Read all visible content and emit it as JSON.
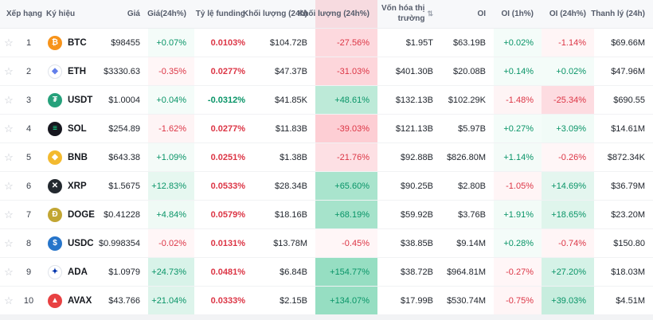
{
  "colors": {
    "up_bg": "46,189,133",
    "down_bg": "246,70,93",
    "up_text": "#089467",
    "down_text": "#dc3545",
    "header_bg": "#f7f8fa"
  },
  "header": {
    "sort_icon": "⇅",
    "cols": [
      {
        "label": "Xếp hạng"
      },
      {
        "label": "Ký hiệu"
      },
      {
        "label": "Giá"
      },
      {
        "label": "Giá(24h%)"
      },
      {
        "label": "Tỷ lệ funding"
      },
      {
        "label": "Khối lượng (24h)"
      },
      {
        "label": "Khối lượng (24h%)"
      },
      {
        "label": "Vốn hóa thị trường"
      },
      {
        "label": "OI"
      },
      {
        "label": "OI (1h%)"
      },
      {
        "label": "OI (24h%)"
      },
      {
        "label": "Thanh lý (24h)"
      }
    ]
  },
  "rows": [
    {
      "rank": "1",
      "symbol": "BTC",
      "icon": {
        "bg": "#f7931a",
        "fg": "#ffffff",
        "glyph": "₿"
      },
      "price": "$98455",
      "change24h": "+0.07%",
      "funding": "0.0103%",
      "volume24h": "$104.72B",
      "volumeChange24h": "-27.56%",
      "marketCap": "$1.95T",
      "oi": "$63.19B",
      "oiChange1h": "+0.02%",
      "oiChange24h": "-1.14%",
      "liquidation24h": "$69.66M"
    },
    {
      "rank": "2",
      "symbol": "ETH",
      "icon": {
        "bg": "#ffffff",
        "fg": "#627eea",
        "glyph": "◆",
        "border": "#dfe3ea"
      },
      "price": "$3330.63",
      "change24h": "-0.35%",
      "funding": "0.0277%",
      "volume24h": "$47.37B",
      "volumeChange24h": "-31.03%",
      "marketCap": "$401.30B",
      "oi": "$20.08B",
      "oiChange1h": "+0.14%",
      "oiChange24h": "+0.02%",
      "liquidation24h": "$47.96M"
    },
    {
      "rank": "3",
      "symbol": "USDT",
      "icon": {
        "bg": "#26a17b",
        "fg": "#ffffff",
        "glyph": "₮"
      },
      "price": "$1.0004",
      "change24h": "+0.04%",
      "funding": "-0.0312%",
      "volume24h": "$41.85K",
      "volumeChange24h": "+48.61%",
      "marketCap": "$132.13B",
      "oi": "$102.29K",
      "oiChange1h": "-1.48%",
      "oiChange24h": "-25.34%",
      "liquidation24h": "$690.55"
    },
    {
      "rank": "4",
      "symbol": "SOL",
      "icon": {
        "bg": "#17171f",
        "fg": "#14f195",
        "glyph": "≡"
      },
      "price": "$254.89",
      "change24h": "-1.62%",
      "funding": "0.0277%",
      "volume24h": "$11.83B",
      "volumeChange24h": "-39.03%",
      "marketCap": "$121.13B",
      "oi": "$5.97B",
      "oiChange1h": "+0.27%",
      "oiChange24h": "+3.09%",
      "liquidation24h": "$14.61M"
    },
    {
      "rank": "5",
      "symbol": "BNB",
      "icon": {
        "bg": "#f3ba2f",
        "fg": "#ffffff",
        "glyph": "◆"
      },
      "price": "$643.38",
      "change24h": "+1.09%",
      "funding": "0.0251%",
      "volume24h": "$1.38B",
      "volumeChange24h": "-21.76%",
      "marketCap": "$92.88B",
      "oi": "$826.80M",
      "oiChange1h": "+1.14%",
      "oiChange24h": "-0.26%",
      "liquidation24h": "$872.34K"
    },
    {
      "rank": "6",
      "symbol": "XRP",
      "icon": {
        "bg": "#23292f",
        "fg": "#ffffff",
        "glyph": "✕"
      },
      "price": "$1.5675",
      "change24h": "+12.83%",
      "funding": "0.0533%",
      "volume24h": "$28.34B",
      "volumeChange24h": "+65.60%",
      "marketCap": "$90.25B",
      "oi": "$2.80B",
      "oiChange1h": "-1.05%",
      "oiChange24h": "+14.69%",
      "liquidation24h": "$36.79M"
    },
    {
      "rank": "7",
      "symbol": "DOGE",
      "icon": {
        "bg": "#c2a633",
        "fg": "#ffffff",
        "glyph": "Ð"
      },
      "price": "$0.41228",
      "change24h": "+4.84%",
      "funding": "0.0579%",
      "volume24h": "$18.16B",
      "volumeChange24h": "+68.19%",
      "marketCap": "$59.92B",
      "oi": "$3.76B",
      "oiChange1h": "+1.91%",
      "oiChange24h": "+18.65%",
      "liquidation24h": "$23.20M"
    },
    {
      "rank": "8",
      "symbol": "USDC",
      "icon": {
        "bg": "#2775ca",
        "fg": "#ffffff",
        "glyph": "$"
      },
      "price": "$0.998354",
      "change24h": "-0.02%",
      "funding": "0.0131%",
      "volume24h": "$13.78M",
      "volumeChange24h": "-0.45%",
      "marketCap": "$38.85B",
      "oi": "$9.14M",
      "oiChange1h": "+0.28%",
      "oiChange24h": "-0.74%",
      "liquidation24h": "$150.80"
    },
    {
      "rank": "9",
      "symbol": "ADA",
      "icon": {
        "bg": "#ffffff",
        "fg": "#0033ad",
        "glyph": "✦",
        "border": "#dfe3ea"
      },
      "price": "$1.0979",
      "change24h": "+24.73%",
      "funding": "0.0481%",
      "volume24h": "$6.84B",
      "volumeChange24h": "+154.77%",
      "marketCap": "$38.72B",
      "oi": "$964.81M",
      "oiChange1h": "-0.27%",
      "oiChange24h": "+27.20%",
      "liquidation24h": "$18.03M"
    },
    {
      "rank": "10",
      "symbol": "AVAX",
      "icon": {
        "bg": "#e84142",
        "fg": "#ffffff",
        "glyph": "▲"
      },
      "price": "$43.766",
      "change24h": "+21.04%",
      "funding": "0.0333%",
      "volume24h": "$2.15B",
      "volumeChange24h": "+134.07%",
      "marketCap": "$17.99B",
      "oi": "$530.74M",
      "oiChange1h": "-0.75%",
      "oiChange24h": "+39.03%",
      "liquidation24h": "$4.51M"
    }
  ]
}
